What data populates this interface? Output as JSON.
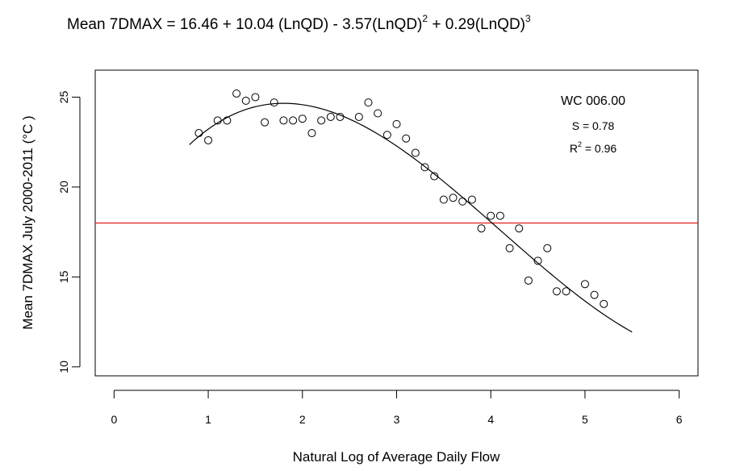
{
  "chart_data": {
    "type": "scatter",
    "title": {
      "prefix": "Mean 7DMAX = 16.46 + 10.04 (LnQD) - 3.57(LnQD)",
      "exp1": "2",
      "middle": " + 0.29(LnQD)",
      "exp2": "3"
    },
    "xlabel": "Natural Log of Average Daily Flow",
    "ylabel": "Mean 7DMAX July 2000-2011 (°C )",
    "xlim": [
      -0.2,
      6.2
    ],
    "ylim": [
      9.5,
      26.5
    ],
    "xticks": [
      0,
      1,
      2,
      3,
      4,
      5,
      6
    ],
    "yticks": [
      10,
      15,
      20,
      25
    ],
    "grid": false,
    "annotation": {
      "station": "WC 006.00",
      "s_text": "S = 0.78",
      "r2_prefix": "R",
      "r2_exp": "2",
      "r2_suffix": " = 0.96"
    },
    "reference_line": {
      "y": 18,
      "color": "#e0201a"
    },
    "fit": {
      "type": "cubic",
      "coefficients": [
        16.46,
        10.04,
        -3.57,
        0.29
      ],
      "x_range": [
        0.8,
        5.5
      ],
      "color": "#000000"
    },
    "series": [
      {
        "marker": "open-circle",
        "points": [
          [
            0.9,
            23.0
          ],
          [
            1.0,
            22.6
          ],
          [
            1.1,
            23.7
          ],
          [
            1.2,
            23.7
          ],
          [
            1.3,
            25.2
          ],
          [
            1.4,
            24.8
          ],
          [
            1.5,
            25.0
          ],
          [
            1.6,
            23.6
          ],
          [
            1.7,
            24.7
          ],
          [
            1.8,
            23.7
          ],
          [
            1.9,
            23.7
          ],
          [
            2.0,
            23.8
          ],
          [
            2.1,
            23.0
          ],
          [
            2.2,
            23.7
          ],
          [
            2.3,
            23.9
          ],
          [
            2.4,
            23.9
          ],
          [
            2.6,
            23.9
          ],
          [
            2.7,
            24.7
          ],
          [
            2.8,
            24.1
          ],
          [
            2.9,
            22.9
          ],
          [
            3.0,
            23.5
          ],
          [
            3.1,
            22.7
          ],
          [
            3.2,
            21.9
          ],
          [
            3.3,
            21.1
          ],
          [
            3.4,
            20.6
          ],
          [
            3.5,
            19.3
          ],
          [
            3.6,
            19.4
          ],
          [
            3.7,
            19.2
          ],
          [
            3.8,
            19.3
          ],
          [
            3.9,
            17.7
          ],
          [
            4.0,
            18.4
          ],
          [
            4.1,
            18.4
          ],
          [
            4.2,
            16.6
          ],
          [
            4.3,
            17.7
          ],
          [
            4.4,
            14.8
          ],
          [
            4.5,
            15.9
          ],
          [
            4.6,
            16.6
          ],
          [
            4.7,
            14.2
          ],
          [
            4.8,
            14.2
          ],
          [
            5.0,
            14.6
          ],
          [
            5.1,
            14.0
          ],
          [
            5.2,
            13.5
          ]
        ]
      }
    ]
  }
}
